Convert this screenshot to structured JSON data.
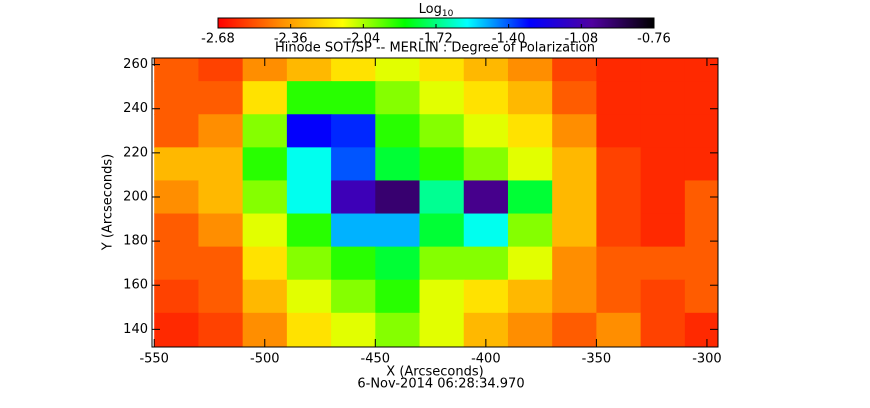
{
  "chart_data": {
    "type": "heatmap",
    "title": "Hinode SOT/SP -- MERLIN : Degree of Polarization",
    "xlabel": "X (Arcseconds)",
    "ylabel": "Y (Arcseconds)",
    "date": "6-Nov-2014 06:28:34.970",
    "colorbar_label": "Log",
    "colorbar_label_sub": "10",
    "clim": [
      -2.68,
      -0.76
    ],
    "colorbar_ticks": [
      -2.68,
      -2.36,
      -2.04,
      -1.72,
      {
        "value": -1.4,
        "label": "-1.40"
      },
      -1.08,
      -0.76
    ],
    "colormap": [
      "#ff0000",
      "#ff8c00",
      "#ffff00",
      "#00ff00",
      "#00ffff",
      "#0000ff",
      "#5000a0",
      "#000000"
    ],
    "xlim": [
      -551,
      -295
    ],
    "ylim": [
      132,
      263
    ],
    "xticks": [
      -550,
      -500,
      -450,
      -400,
      -350,
      -300
    ],
    "yticks": [
      140,
      160,
      180,
      200,
      220,
      240,
      260
    ],
    "x": [
      -540,
      -520,
      -500,
      -480,
      -460,
      -440,
      -420,
      -400,
      -380,
      -360,
      -340,
      -320,
      -300
    ],
    "y": [
      260,
      245,
      230,
      215,
      200,
      185,
      170,
      155,
      140
    ],
    "z": [
      [
        -2.5,
        -2.55,
        -2.4,
        -2.3,
        -2.2,
        -2.1,
        -2.2,
        -2.3,
        -2.4,
        -2.55,
        -2.6,
        -2.6,
        -2.6
      ],
      [
        -2.5,
        -2.5,
        -2.2,
        -1.9,
        -1.9,
        -2.0,
        -2.1,
        -2.2,
        -2.3,
        -2.5,
        -2.6,
        -2.6,
        -2.6
      ],
      [
        -2.5,
        -2.4,
        -2.0,
        -1.3,
        -1.35,
        -1.9,
        -2.0,
        -2.1,
        -2.2,
        -2.4,
        -2.6,
        -2.6,
        -2.6
      ],
      [
        -2.3,
        -2.3,
        -1.9,
        -1.6,
        -1.4,
        -1.8,
        -1.9,
        -2.0,
        -2.1,
        -2.3,
        -2.55,
        -2.6,
        -2.6
      ],
      [
        -2.4,
        -2.3,
        -2.0,
        -1.6,
        -1.1,
        -0.95,
        -1.7,
        -1.0,
        -1.8,
        -2.3,
        -2.55,
        -2.6,
        -2.5
      ],
      [
        -2.5,
        -2.4,
        -2.1,
        -1.9,
        -1.5,
        -1.5,
        -1.8,
        -1.6,
        -2.0,
        -2.3,
        -2.55,
        -2.6,
        -2.5
      ],
      [
        -2.5,
        -2.5,
        -2.2,
        -2.0,
        -1.9,
        -1.8,
        -2.0,
        -2.0,
        -2.1,
        -2.4,
        -2.5,
        -2.5,
        -2.5
      ],
      [
        -2.55,
        -2.5,
        -2.3,
        -2.1,
        -2.0,
        -1.9,
        -2.1,
        -2.2,
        -2.3,
        -2.4,
        -2.5,
        -2.55,
        -2.5
      ],
      [
        -2.6,
        -2.55,
        -2.4,
        -2.2,
        -2.1,
        -2.0,
        -2.1,
        -2.3,
        -2.4,
        -2.5,
        -2.4,
        -2.55,
        -2.6
      ]
    ]
  }
}
